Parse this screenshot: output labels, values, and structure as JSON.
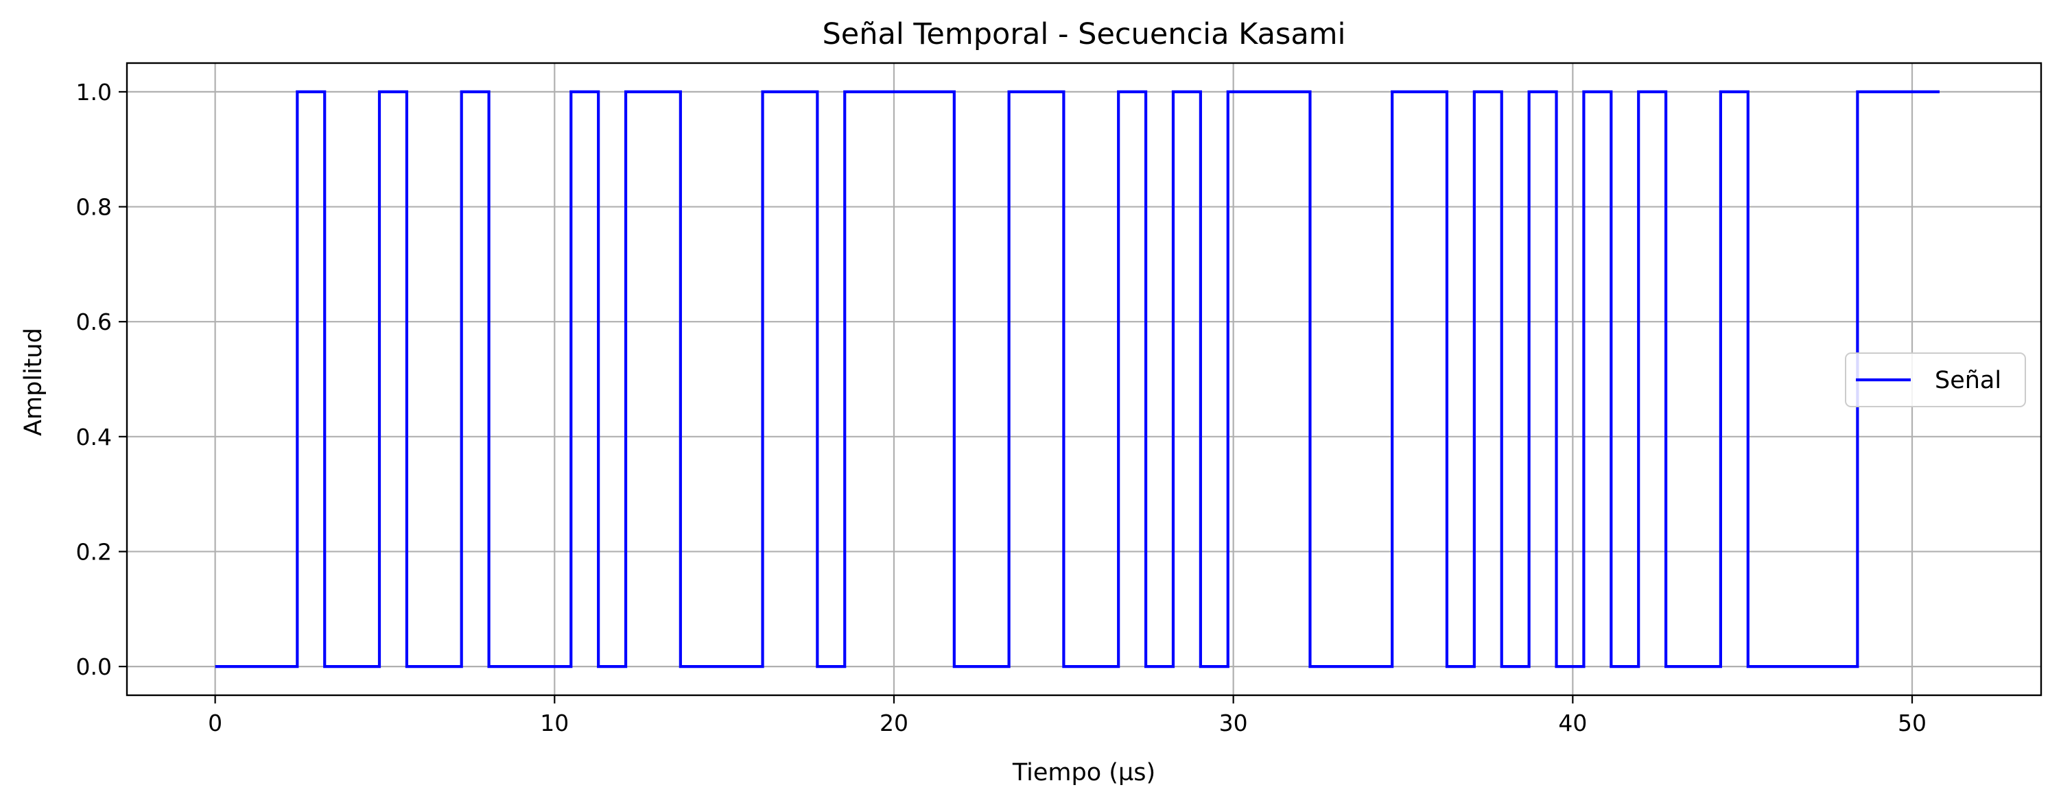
{
  "colors": {
    "series_line": "#0000ff",
    "grid": "#b0b0b0",
    "background": "#ffffff"
  },
  "chart_data": {
    "type": "line",
    "step": "post",
    "title": "Señal Temporal - Secuencia Kasami",
    "xlabel": "Tiempo (µs)",
    "ylabel": "Amplitud",
    "xlim": [
      -2.6,
      53.8
    ],
    "ylim": [
      -0.05,
      1.05
    ],
    "xticks": [
      0,
      10,
      20,
      30,
      40,
      50
    ],
    "xtick_labels": [
      "0",
      "10",
      "20",
      "30",
      "40",
      "50"
    ],
    "yticks": [
      0.0,
      0.2,
      0.4,
      0.6,
      0.8,
      1.0
    ],
    "ytick_labels": [
      "0.0",
      "0.2",
      "0.4",
      "0.6",
      "0.8",
      "1.0"
    ],
    "grid": true,
    "legend_position": "center-right",
    "series": [
      {
        "name": "Señal",
        "chip_duration": 0.8065,
        "values": [
          0,
          0,
          0,
          1,
          0,
          0,
          1,
          0,
          0,
          1,
          0,
          0,
          0,
          1,
          0,
          1,
          1,
          0,
          0,
          0,
          1,
          1,
          0,
          1,
          1,
          1,
          1,
          0,
          0,
          1,
          1,
          0,
          0,
          1,
          0,
          1,
          0,
          1,
          1,
          1,
          0,
          0,
          0,
          1,
          1,
          0,
          1,
          0,
          1,
          0,
          1,
          0,
          1,
          0,
          0,
          1,
          0,
          0,
          0,
          0,
          1,
          1,
          1
        ]
      }
    ]
  }
}
